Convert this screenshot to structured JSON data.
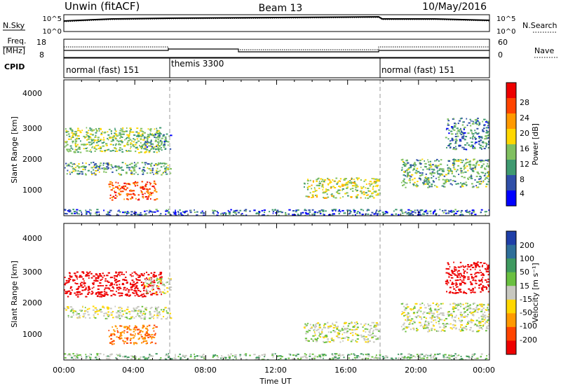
{
  "header": {
    "radar": "Unwin (fitACF)",
    "beam": "Beam 13",
    "date": "10/May/2016"
  },
  "status_panel": {
    "nsky_label": "N.Sky",
    "nsearch_label": "N.Search",
    "freq_label": "Freq.",
    "freq_unit": "[MHz]",
    "nave_label": "Nave",
    "cpid_label": "CPID",
    "noise_ticks_left": [
      "10^5",
      "10^0"
    ],
    "noise_ticks_right": [
      "10^5",
      "10^0"
    ],
    "freq_ticks": [
      "18",
      "8"
    ],
    "nave_ticks": [
      "60",
      "0"
    ]
  },
  "cpid_segments": [
    {
      "label": "normal (fast) 151",
      "start_hour": 0,
      "end_hour": 6
    },
    {
      "label": "themis 3300",
      "start_hour": 6,
      "end_hour": 18
    },
    {
      "label": "normal (fast) 151",
      "start_hour": 18,
      "end_hour": 24
    }
  ],
  "x_axis": {
    "title": "Time UT",
    "ticks": [
      "00:00",
      "04:00",
      "08:00",
      "12:00",
      "16:00",
      "20:00",
      "00:00"
    ],
    "tick_hours": [
      0,
      4,
      8,
      12,
      16,
      20,
      24
    ],
    "range_hours": [
      0,
      24
    ]
  },
  "power_panel": {
    "ylabel": "Slant Range [km]",
    "yticks": [
      "4000",
      "3000",
      "2000",
      "1000"
    ],
    "cbar_label": "Power [dB]",
    "cbar_ticks": [
      "28",
      "24",
      "20",
      "16",
      "12",
      "8",
      "4"
    ],
    "cbar_colors": [
      "#ee0000",
      "#ff4400",
      "#ff9900",
      "#ffd700",
      "#80c060",
      "#3f9a70",
      "#2f4fa8",
      "#0000ff"
    ]
  },
  "velocity_panel": {
    "ylabel": "Slant Range [km]",
    "yticks": [
      "4000",
      "3000",
      "2000",
      "1000"
    ],
    "cbar_label": "Velocity [m s⁻¹]",
    "cbar_ticks": [
      "200",
      "100",
      "50",
      "15",
      "-15",
      "-50",
      "-100",
      "-200"
    ],
    "cbar_colors": [
      "#1f3fa8",
      "#2f6f9a",
      "#3f9a60",
      "#6ac040",
      "#c8c8c0",
      "#ffd700",
      "#ff9900",
      "#ff4400",
      "#ee0000"
    ]
  },
  "chart_data": {
    "type": "heatmap",
    "x_range_hours": [
      0,
      24
    ],
    "y_range_km": [
      180,
      4500
    ],
    "mode_changes_hours": [
      6,
      18
    ],
    "frequency_mhz": [
      {
        "start_hour": 0,
        "end_hour": 6,
        "value": 10.5
      },
      {
        "start_hour": 6,
        "end_hour": 10,
        "value": 10.0
      },
      {
        "start_hour": 10,
        "end_hour": 18,
        "value": 9.5
      },
      {
        "start_hour": 18,
        "end_hour": 24,
        "value": 10.5
      }
    ],
    "scatter_regions": [
      {
        "start_hour": 0.0,
        "end_hour": 5.5,
        "range_km": [
          2200,
          3000
        ],
        "power_db": 12,
        "velocity": -200
      },
      {
        "start_hour": 0.0,
        "end_hour": 6.0,
        "range_km": [
          1500,
          1900
        ],
        "power_db": 10,
        "velocity": 0
      },
      {
        "start_hour": 2.5,
        "end_hour": 5.2,
        "range_km": [
          700,
          1300
        ],
        "power_db": 24,
        "velocity": -100
      },
      {
        "start_hour": 4.5,
        "end_hour": 6.0,
        "range_km": [
          2300,
          2800
        ],
        "power_db": 8,
        "velocity": 0
      },
      {
        "start_hour": 13.5,
        "end_hour": 17.8,
        "range_km": [
          750,
          1400
        ],
        "power_db": 14,
        "velocity": 0
      },
      {
        "start_hour": 19.0,
        "end_hour": 24.0,
        "range_km": [
          1100,
          2000
        ],
        "power_db": 10,
        "velocity": 0
      },
      {
        "start_hour": 21.5,
        "end_hour": 24.0,
        "range_km": [
          2300,
          3300
        ],
        "power_db": 8,
        "velocity": -200
      },
      {
        "start_hour": 0.0,
        "end_hour": 24.0,
        "range_km": [
          200,
          400
        ],
        "power_db": 6,
        "velocity": 20
      }
    ]
  }
}
